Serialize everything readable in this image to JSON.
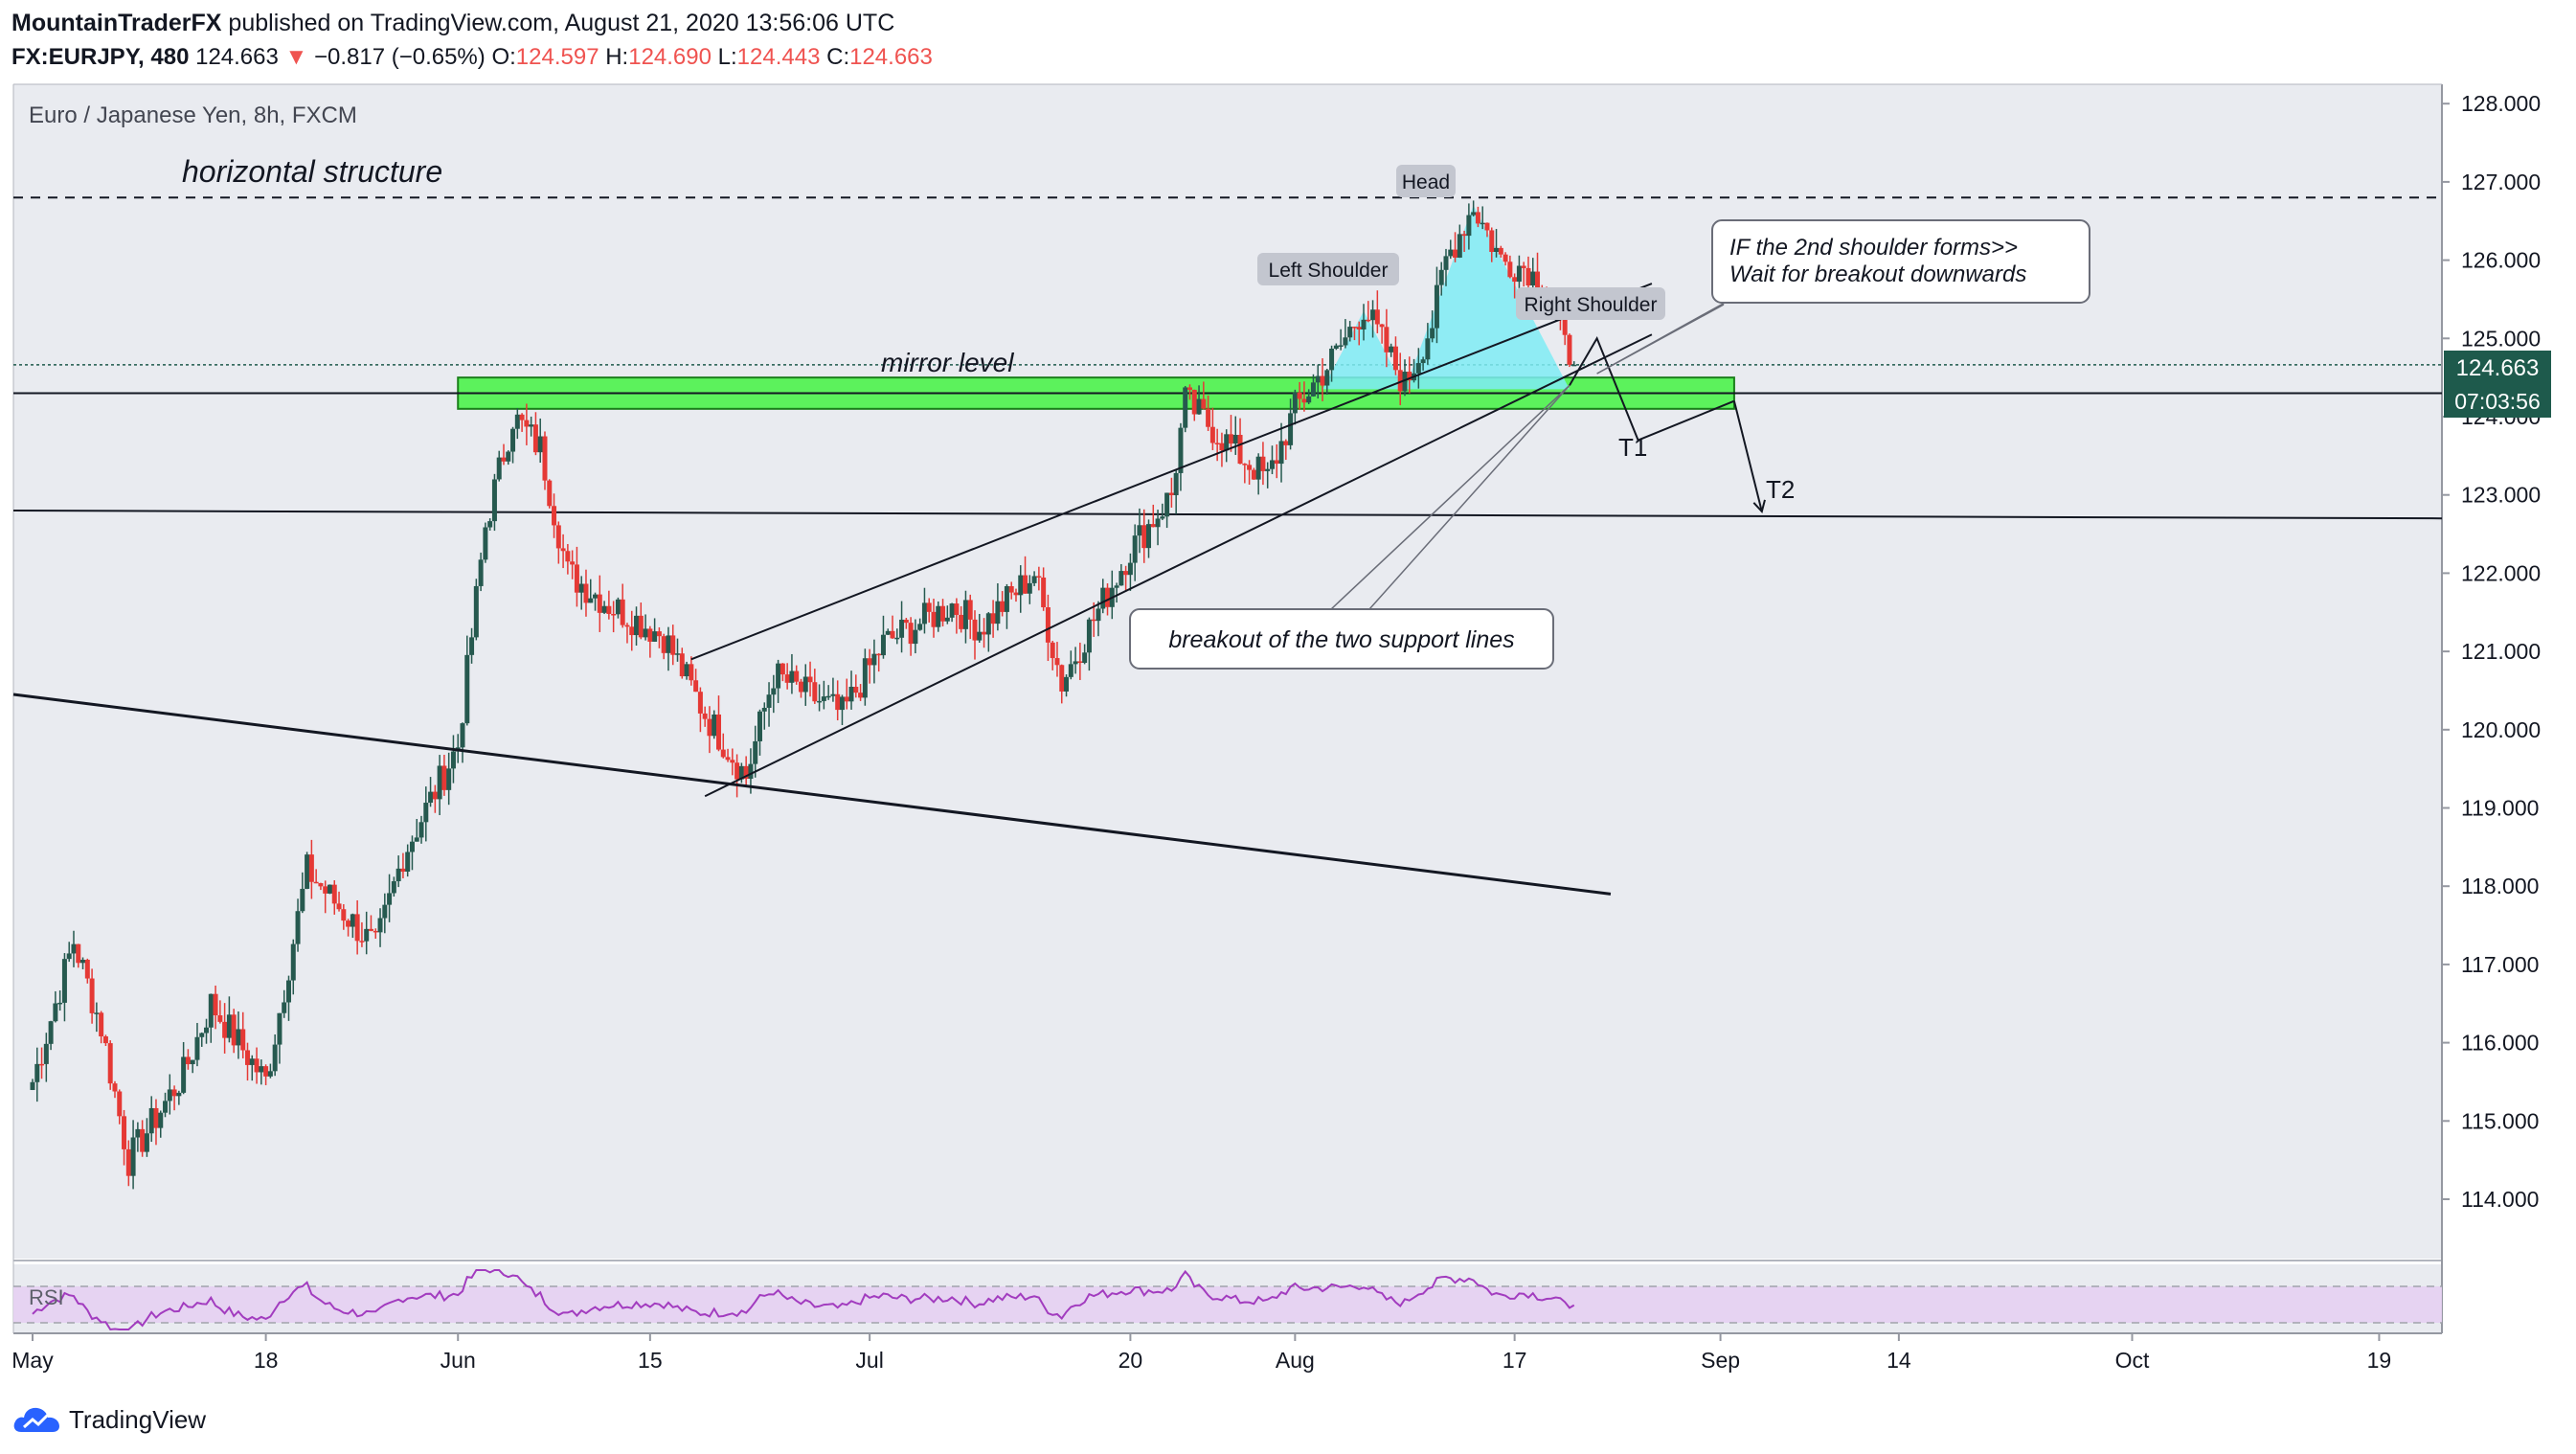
{
  "header": {
    "author": "MountainTraderFX",
    "published_text": "published on TradingView.com, August 21, 2020 13:56:06 UTC",
    "symbol": "FX:EURJPY, 480",
    "last": "124.663",
    "change_arrow": "▼",
    "change": "−0.817 (−0.65%)",
    "o_label": "O:",
    "o_value": "124.597",
    "h_label": "H:",
    "h_value": "124.690",
    "l_label": "L:",
    "l_value": "124.443",
    "c_label": "C:",
    "c_value": "124.663"
  },
  "footer": {
    "brand": "TradingView",
    "logo_icon": "tradingview-logo-icon"
  },
  "colors": {
    "up": "#26594f",
    "down": "#e53935",
    "pane_bg": "#e9ebf0",
    "green_zone": "#5cf25c",
    "cyan_area": "#7fecf5",
    "rsi": "#a23cbf",
    "rsi_band": "#e6d0f2"
  },
  "chart_data": {
    "type": "candlestick",
    "title": "Euro / Japanese Yen, 8h, FXCM",
    "y_ticks": [
      "114.000",
      "115.000",
      "116.000",
      "117.000",
      "118.000",
      "119.000",
      "120.000",
      "121.000",
      "122.000",
      "123.000",
      "124.000",
      "125.000",
      "126.000",
      "127.000",
      "128.000"
    ],
    "x_ticks": [
      "May",
      "18",
      "Jun",
      "15",
      "Jul",
      "20",
      "Aug",
      "17",
      "Sep",
      "14",
      "Oct",
      "19"
    ],
    "ylim": [
      113.3,
      128.3
    ],
    "price_label": "124.663",
    "countdown_label": "07:03:56",
    "rsi_label": "RSI",
    "ohlc_anchors": [
      {
        "date": "2020-05-01",
        "close": 115.5
      },
      {
        "date": "2020-05-04",
        "close": 117.3
      },
      {
        "date": "2020-05-06",
        "close": 116.2
      },
      {
        "date": "2020-05-08",
        "close": 114.5
      },
      {
        "date": "2020-05-12",
        "close": 115.6
      },
      {
        "date": "2020-05-14",
        "close": 116.5
      },
      {
        "date": "2020-05-18",
        "close": 115.5
      },
      {
        "date": "2020-05-21",
        "close": 118.2
      },
      {
        "date": "2020-05-26",
        "close": 117.2
      },
      {
        "date": "2020-05-28",
        "close": 118.4
      },
      {
        "date": "2020-06-01",
        "close": 119.8
      },
      {
        "date": "2020-06-03",
        "close": 122.6
      },
      {
        "date": "2020-06-05",
        "close": 124.0
      },
      {
        "date": "2020-06-07",
        "close": 123.6
      },
      {
        "date": "2020-06-09",
        "close": 122.0
      },
      {
        "date": "2020-06-12",
        "close": 121.6
      },
      {
        "date": "2020-06-16",
        "close": 121.2
      },
      {
        "date": "2020-06-19",
        "close": 120.2
      },
      {
        "date": "2020-06-22",
        "close": 119.4
      },
      {
        "date": "2020-06-24",
        "close": 120.7
      },
      {
        "date": "2020-06-29",
        "close": 120.2
      },
      {
        "date": "2020-07-02",
        "close": 121.1
      },
      {
        "date": "2020-07-07",
        "close": 121.6
      },
      {
        "date": "2020-07-09",
        "close": 121.3
      },
      {
        "date": "2020-07-13",
        "close": 122.0
      },
      {
        "date": "2020-07-15",
        "close": 120.6
      },
      {
        "date": "2020-07-17",
        "close": 121.3
      },
      {
        "date": "2020-07-20",
        "close": 122.3
      },
      {
        "date": "2020-07-23",
        "close": 123.0
      },
      {
        "date": "2020-07-24",
        "close": 124.2
      },
      {
        "date": "2020-07-28",
        "close": 123.5
      },
      {
        "date": "2020-07-30",
        "close": 123.2
      },
      {
        "date": "2020-08-01",
        "close": 124.1
      },
      {
        "date": "2020-08-04",
        "close": 124.8
      },
      {
        "date": "2020-08-06",
        "close": 125.4
      },
      {
        "date": "2020-08-09",
        "close": 124.4
      },
      {
        "date": "2020-08-11",
        "close": 125.2
      },
      {
        "date": "2020-08-12",
        "close": 126.0
      },
      {
        "date": "2020-08-14",
        "close": 126.7
      },
      {
        "date": "2020-08-16",
        "close": 126.0
      },
      {
        "date": "2020-08-18",
        "close": 125.9
      },
      {
        "date": "2020-08-19",
        "close": 125.6
      },
      {
        "date": "2020-08-20",
        "close": 125.3
      },
      {
        "date": "2020-08-21",
        "close": 124.663
      }
    ],
    "levels": {
      "horizontal_structure": 126.8,
      "last_price": 124.663,
      "mirror_level": 124.3,
      "zone": [
        124.1,
        124.5
      ],
      "lower_line_start": 122.8,
      "lower_line_end": 122.7
    },
    "annotations": {
      "horizontal_structure": "horizontal structure",
      "mirror_level": "mirror level",
      "head": "Head",
      "left_shoulder": "Left Shoulder",
      "right_shoulder": "Right Shoulder",
      "callout_line1": "IF the 2nd shoulder forms>>",
      "callout_line2": "Wait for breakout downwards",
      "breakout": "breakout of the two support lines",
      "t1": "T1",
      "t2": "T2"
    }
  }
}
